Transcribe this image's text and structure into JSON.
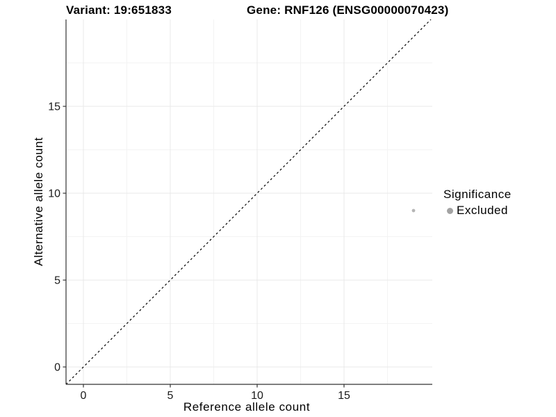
{
  "header": {
    "variant_title": "Variant: 19:651833",
    "gene_title": "Gene: RNF126 (ENSG00000070423)"
  },
  "chart_data": {
    "type": "scatter",
    "title": "Variant: 19:651833   Gene: RNF126 (ENSG00000070423)",
    "xlabel": "Reference allele count",
    "ylabel": "Alternative allele count",
    "xlim": [
      -1,
      20.08
    ],
    "ylim": [
      -1,
      20
    ],
    "x_ticks": [
      0,
      5,
      10,
      15
    ],
    "y_ticks": [
      0,
      5,
      10,
      15
    ],
    "x_minor_ticks": [
      2.5,
      7.5,
      12.5,
      17.5
    ],
    "y_minor_ticks": [
      2.5,
      7.5,
      12.5,
      17.5
    ],
    "grid": true,
    "identity_line": {
      "type": "y=x",
      "style": "dashed",
      "color": "#000000"
    },
    "points": [
      {
        "x": 19,
        "y": 9,
        "series": "Excluded"
      }
    ],
    "point_color": "#b5b5b5",
    "legend": {
      "position": "right",
      "title": "Significance",
      "items": [
        {
          "label": "Excluded",
          "color": "#a3a3a3"
        }
      ]
    },
    "colors": {
      "axis_line": "#333333",
      "grid_major": "#e8e8e8",
      "grid_minor": "#f3f3f3",
      "tick_text": "#1a1a1a",
      "background": "#ffffff"
    }
  }
}
